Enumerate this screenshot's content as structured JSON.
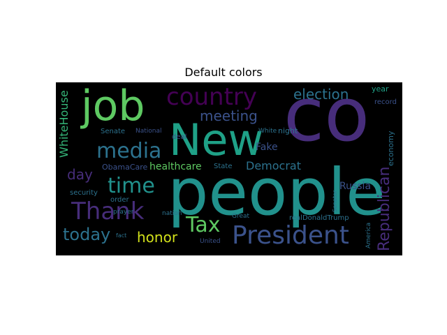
{
  "figure": {
    "title": "Default colors"
  },
  "palette": {
    "yellow": "#d2e11b",
    "green_light": "#5ec962",
    "green": "#35b779",
    "teal": "#1fa187",
    "teal_blue": "#21918c",
    "blue": "#2c728e",
    "indigo": "#3b528b",
    "violet": "#472d7b",
    "purple": "#440154"
  },
  "words": {
    "co": "co",
    "people": "people",
    "new": "New",
    "job": "job",
    "country": "country",
    "president": "President",
    "thank": "Thank",
    "media": "media",
    "time": "time",
    "tax": "Tax",
    "election": "election",
    "meeting": "meeting",
    "republican": "Republican",
    "today": "today",
    "honor": "honor",
    "democrat": "Democrat",
    "day": "day",
    "whitehouse": "WhiteHouse",
    "russia": "Russia",
    "healthcare": "healthcare",
    "fake": "Fake",
    "economy": "economy",
    "year": "year",
    "record": "record",
    "night": "night",
    "obamacare": "ObamaCare",
    "state": "State",
    "security": "security",
    "order": "order",
    "deal": "deal",
    "realdonaldtrump": "realDonaldTrump",
    "senate": "Senate",
    "national": "National",
    "white": "White",
    "prayer": "prayer",
    "nation": "nation",
    "great": "Great",
    "america": "America",
    "united": "United",
    "senator": "Senator",
    "fact": "fact"
  }
}
